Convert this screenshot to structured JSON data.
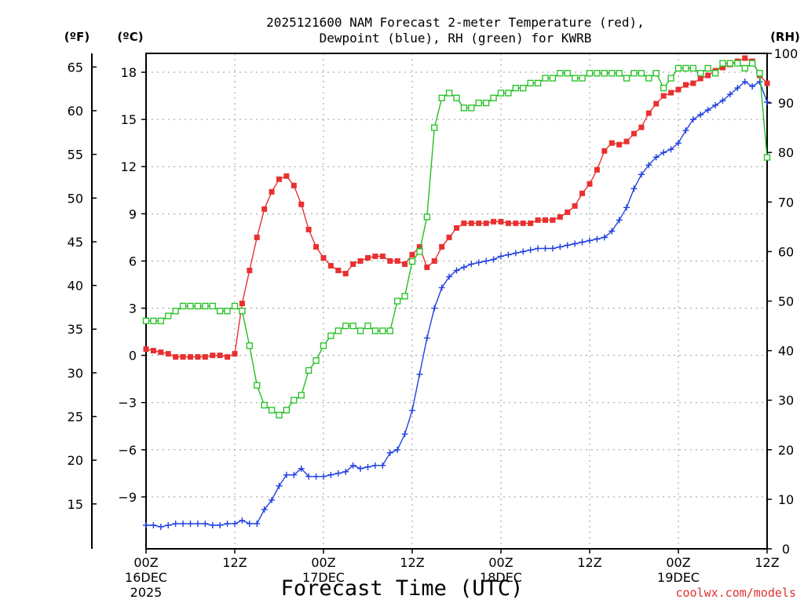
{
  "chart_data": {
    "type": "line",
    "title": [
      "2025121600 NAM Forecast 2-meter Temperature (red),",
      "Dewpoint (blue), RH (green) for KWRB"
    ],
    "xlabel": "Forecast Time (UTC)",
    "credit": "coolwx.com/models",
    "units": {
      "left_outer": "(ºF)",
      "left_inner": "(ºC)",
      "right": "(RH)"
    },
    "x_range_hours": [
      0,
      84
    ],
    "x_ticks": [
      {
        "h": 0,
        "lines": [
          "00Z",
          "16DEC",
          "2025"
        ]
      },
      {
        "h": 12,
        "lines": [
          "12Z"
        ]
      },
      {
        "h": 24,
        "lines": [
          "00Z",
          "17DEC"
        ]
      },
      {
        "h": 36,
        "lines": [
          "12Z"
        ]
      },
      {
        "h": 48,
        "lines": [
          "00Z",
          "18DEC"
        ]
      },
      {
        "h": 60,
        "lines": [
          "12Z"
        ]
      },
      {
        "h": 72,
        "lines": [
          "00Z",
          "19DEC"
        ]
      },
      {
        "h": 84,
        "lines": [
          "12Z"
        ]
      }
    ],
    "yaxis_c": {
      "range": [
        -12.3,
        19.2
      ],
      "ticks": [
        -9,
        -6,
        -3,
        0,
        3,
        6,
        9,
        12,
        15,
        18
      ]
    },
    "yaxis_f": {
      "ticks": [
        15,
        20,
        25,
        30,
        35,
        40,
        45,
        50,
        55,
        60,
        65
      ]
    },
    "yaxis_rh": {
      "range": [
        0,
        100
      ],
      "ticks": [
        0,
        10,
        20,
        30,
        40,
        50,
        60,
        70,
        80,
        90,
        100
      ]
    },
    "x_hours": [
      0,
      1,
      2,
      3,
      4,
      5,
      6,
      7,
      8,
      9,
      10,
      11,
      12,
      13,
      14,
      15,
      16,
      17,
      18,
      19,
      20,
      21,
      22,
      23,
      24,
      25,
      26,
      27,
      28,
      29,
      30,
      31,
      32,
      33,
      34,
      35,
      36,
      37,
      38,
      39,
      40,
      41,
      42,
      43,
      44,
      45,
      46,
      47,
      48,
      49,
      50,
      51,
      52,
      53,
      54,
      55,
      56,
      57,
      58,
      59,
      60,
      61,
      62,
      63,
      64,
      65,
      66,
      67,
      68,
      69,
      70,
      71,
      72,
      73,
      74,
      75,
      76,
      77,
      78,
      79,
      80,
      81,
      82,
      83,
      84
    ],
    "series": [
      {
        "name": "Temperature (°C)",
        "axis": "c",
        "color": "#e83030",
        "marker": "filled-square",
        "values": [
          0.4,
          0.3,
          0.2,
          0.1,
          -0.1,
          -0.1,
          -0.1,
          -0.1,
          -0.1,
          0,
          0,
          -0.1,
          0.1,
          3.3,
          5.4,
          7.5,
          9.3,
          10.4,
          11.2,
          11.4,
          10.8,
          9.6,
          8,
          6.9,
          6.2,
          5.7,
          5.4,
          5.2,
          5.8,
          6,
          6.2,
          6.3,
          6.3,
          6,
          6,
          5.8,
          6.4,
          6.9,
          5.6,
          6,
          6.9,
          7.5,
          8.1,
          8.4,
          8.4,
          8.4,
          8.4,
          8.5,
          8.5,
          8.4,
          8.4,
          8.4,
          8.4,
          8.6,
          8.6,
          8.6,
          8.8,
          9.1,
          9.5,
          10.3,
          10.9,
          11.8,
          13,
          13.5,
          13.4,
          13.6,
          14.1,
          14.5,
          15.4,
          16,
          16.5,
          16.7,
          16.9,
          17.2,
          17.3,
          17.6,
          17.8,
          18.1,
          18.3,
          18.5,
          18.7,
          18.9,
          18.7,
          17.8,
          17.3
        ]
      },
      {
        "name": "Dewpoint (°C)",
        "axis": "c",
        "color": "#2040e0",
        "marker": "plus",
        "values": [
          -10.8,
          -10.8,
          -10.9,
          -10.8,
          -10.7,
          -10.7,
          -10.7,
          -10.7,
          -10.7,
          -10.8,
          -10.8,
          -10.7,
          -10.7,
          -10.5,
          -10.7,
          -10.7,
          -9.8,
          -9.2,
          -8.3,
          -7.6,
          -7.6,
          -7.2,
          -7.7,
          -7.7,
          -7.7,
          -7.6,
          -7.5,
          -7.4,
          -7,
          -7.2,
          -7.1,
          -7,
          -7,
          -6.2,
          -6,
          -5,
          -3.5,
          -1.2,
          1.1,
          3,
          4.3,
          5,
          5.4,
          5.6,
          5.8,
          5.9,
          6,
          6.1,
          6.3,
          6.4,
          6.5,
          6.6,
          6.7,
          6.8,
          6.8,
          6.8,
          6.9,
          7,
          7.1,
          7.2,
          7.3,
          7.4,
          7.5,
          7.9,
          8.6,
          9.4,
          10.6,
          11.5,
          12.1,
          12.6,
          12.9,
          13.1,
          13.5,
          14.3,
          15,
          15.3,
          15.6,
          15.9,
          16.2,
          16.6,
          17,
          17.4,
          17.1,
          17.4,
          16.1
        ]
      },
      {
        "name": "RH (%)",
        "axis": "rh",
        "color": "#20c020",
        "marker": "open-square",
        "values": [
          46,
          46,
          46,
          47,
          48,
          49,
          49,
          49,
          49,
          49,
          48,
          48,
          49,
          48,
          41,
          33,
          29,
          28,
          27,
          28,
          30,
          31,
          36,
          38,
          41,
          43,
          44,
          45,
          45,
          44,
          45,
          44,
          44,
          44,
          50,
          51,
          58,
          60,
          67,
          85,
          91,
          92,
          91,
          89,
          89,
          90,
          90,
          91,
          92,
          92,
          93,
          93,
          94,
          94,
          95,
          95,
          96,
          96,
          95,
          95,
          96,
          96,
          96,
          96,
          96,
          95,
          96,
          96,
          95,
          96,
          93,
          95,
          97,
          97,
          97,
          96,
          97,
          96,
          98,
          98,
          98,
          97,
          98,
          96,
          79
        ]
      }
    ]
  }
}
